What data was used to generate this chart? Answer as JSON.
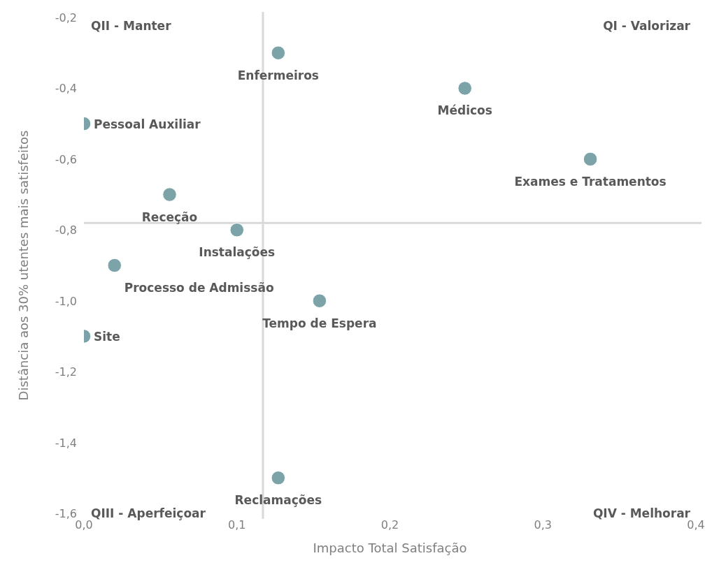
{
  "chart_data": {
    "type": "scatter",
    "xlabel": "Impacto Total Satisfação",
    "ylabel": "Distância aos 30% utentes mais satisfeitos",
    "x": [
      0.127,
      0.249,
      0.331,
      0,
      0.056,
      0.1,
      0.02,
      0.154,
      0,
      0.127
    ],
    "values": [
      -0.3,
      -0.4,
      -0.6,
      -0.5,
      -0.7,
      -0.8,
      -0.9,
      -1.0,
      -1.1,
      -1.5
    ],
    "color": "#7ba3a8",
    "marker": "circle",
    "grid": false,
    "xlim": [
      0,
      0.4
    ],
    "xticks": [
      {
        "value": 0,
        "label": "0,0"
      },
      {
        "value": 0.1,
        "label": "0,1"
      },
      {
        "value": 0.2,
        "label": "0,2"
      },
      {
        "value": 0.3,
        "label": "0,3"
      },
      {
        "value": 0.4,
        "label": "0,4"
      }
    ],
    "ylim": [
      -1.6,
      -0.2
    ],
    "yticks": [
      {
        "value": -1.6,
        "label": "-1,6"
      },
      {
        "value": -1.4,
        "label": "-1,4"
      },
      {
        "value": -1.2,
        "label": "-1,2"
      },
      {
        "value": -1.0,
        "label": "-1,0"
      },
      {
        "value": -0.8,
        "label": "-0,8"
      },
      {
        "value": -0.6,
        "label": "-0,6"
      },
      {
        "value": -0.4,
        "label": "-0,4"
      },
      {
        "value": -0.2,
        "label": "-0,2"
      }
    ],
    "ref_lines": [
      {
        "axis": "x",
        "value": 0.117,
        "color": "#d9d9d9"
      },
      {
        "axis": "y",
        "value": -0.78,
        "color": "#d9d9d9"
      }
    ],
    "annotations": [
      "QII - Manter",
      "QI - Valorizar",
      "QIII - Aperfeiçoar",
      "QIV - Melhorar",
      {
        "text": "Enfermeiros",
        "x": 0.127,
        "y": -0.3
      },
      {
        "text": "Médicos",
        "x": 0.249,
        "y": -0.4
      },
      {
        "text": "Exames e Tratamentos",
        "x": 0.331,
        "y": -0.6
      },
      {
        "text": "Pessoal Auxiliar",
        "x": 0,
        "y": -0.5
      },
      {
        "text": "Receção",
        "x": 0.056,
        "y": -0.7
      },
      {
        "text": "Instalações",
        "x": 0.1,
        "y": -0.8
      },
      {
        "text": "Processo de Admissão",
        "x": 0.02,
        "y": -0.9
      },
      {
        "text": "Tempo de Espera",
        "x": 0.154,
        "y": -1.0
      },
      {
        "text": "Site",
        "x": 0,
        "y": -1.1
      },
      {
        "text": "Reclamações",
        "x": 0.127,
        "y": -1.5
      }
    ]
  }
}
